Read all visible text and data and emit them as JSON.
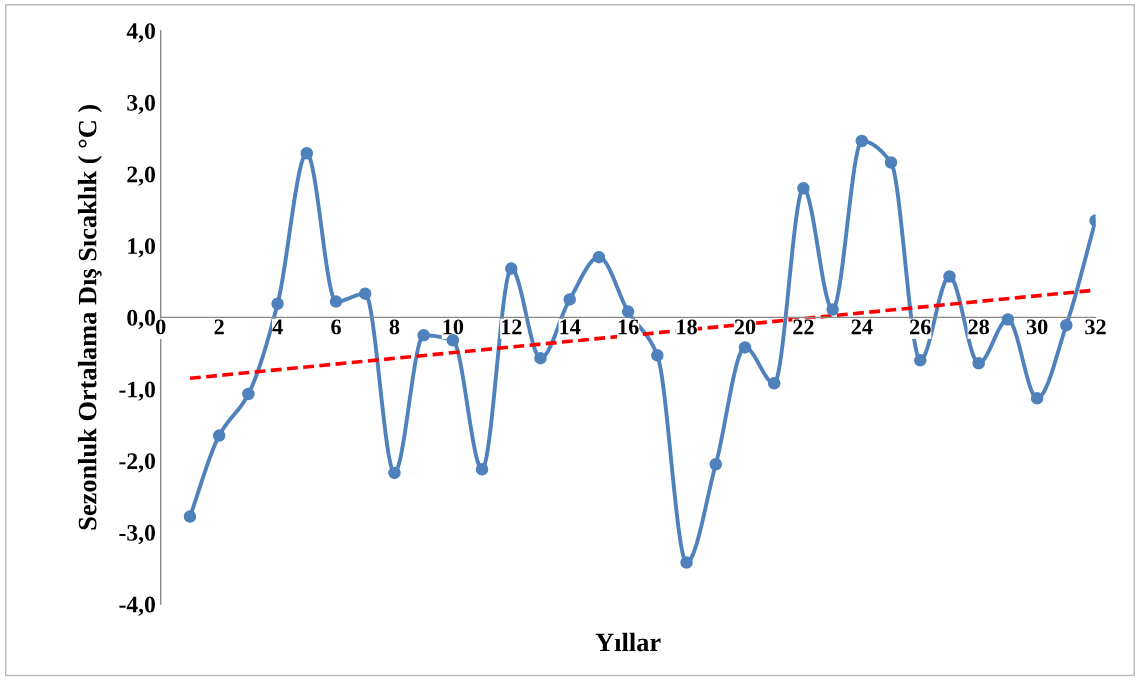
{
  "chart_data": {
    "type": "line",
    "xlabel": "Yıllar",
    "ylabel": "Sezonluk Ortalama Dış Sıcaklık ( °C )",
    "x": [
      1,
      2,
      3,
      4,
      5,
      6,
      7,
      8,
      9,
      10,
      11,
      12,
      13,
      14,
      15,
      16,
      17,
      18,
      19,
      20,
      21,
      22,
      23,
      24,
      25,
      26,
      27,
      28,
      29,
      30,
      31,
      32
    ],
    "series": [
      {
        "color": "#4f81bd",
        "marker": "circle",
        "line_style": "solid",
        "values": [
          -2.78,
          -1.65,
          -1.07,
          0.19,
          2.29,
          0.22,
          0.33,
          -2.17,
          -0.25,
          -0.32,
          -2.12,
          0.68,
          -0.57,
          0.25,
          0.84,
          0.08,
          -0.53,
          -3.42,
          -2.05,
          -0.42,
          -0.92,
          1.8,
          0.11,
          2.46,
          2.16,
          -0.6,
          0.57,
          -0.64,
          -0.03,
          -1.13,
          -0.11,
          1.35
        ]
      },
      {
        "type": "line",
        "color": "#ff0000",
        "marker": "none",
        "line_style": "dashed",
        "x": [
          1,
          32
        ],
        "values": [
          -0.85,
          0.38
        ]
      }
    ],
    "xlim": [
      0,
      32
    ],
    "xticks": [
      0,
      2,
      4,
      6,
      8,
      10,
      12,
      14,
      16,
      18,
      20,
      22,
      24,
      26,
      28,
      30,
      32
    ],
    "ylim": [
      -4,
      4
    ],
    "yticks": [
      {
        "value": -4,
        "label": "-4,0"
      },
      {
        "value": -3,
        "label": "-3,0"
      },
      {
        "value": -2,
        "label": "-2,0"
      },
      {
        "value": -1,
        "label": "-1,0"
      },
      {
        "value": 0,
        "label": "0,0"
      },
      {
        "value": 1,
        "label": "1,0"
      },
      {
        "value": 2,
        "label": "2,0"
      },
      {
        "value": 3,
        "label": "3,0"
      },
      {
        "value": 4,
        "label": "4,0"
      }
    ],
    "grid": false
  }
}
